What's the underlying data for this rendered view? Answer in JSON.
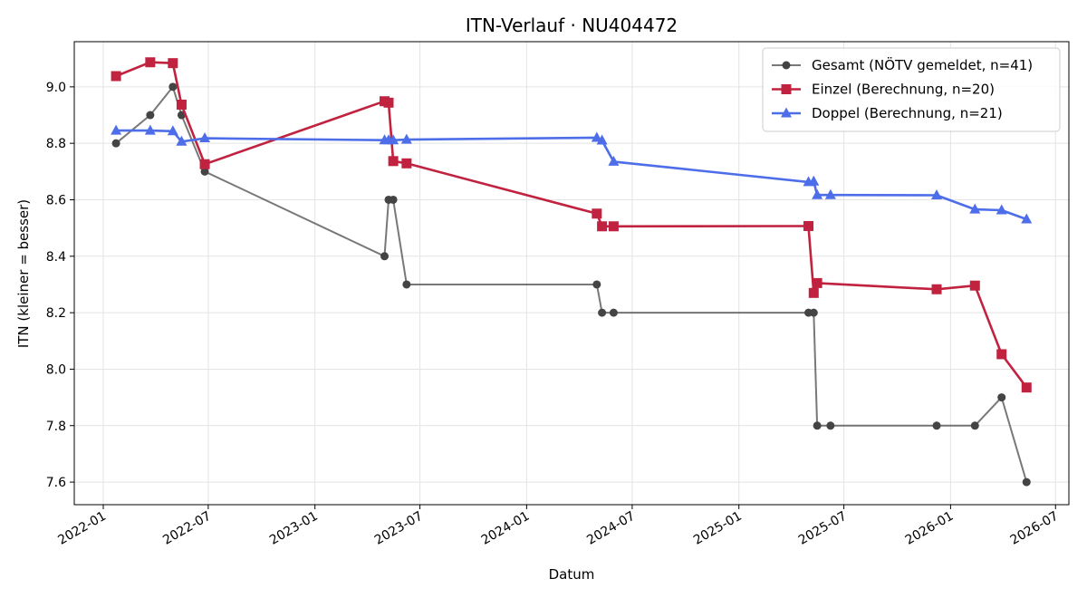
{
  "chart_data": {
    "type": "line",
    "title": "ITN-Verlauf · NU404472",
    "xlabel": "Datum",
    "ylabel": "ITN  (kleiner = besser)",
    "x_type": "date",
    "xlim": [
      "2021-11-12",
      "2026-07-24"
    ],
    "ylim": [
      7.52,
      9.16
    ],
    "x_ticks": [
      "2022-01-01",
      "2022-07-01",
      "2023-01-01",
      "2023-07-01",
      "2024-01-01",
      "2024-07-01",
      "2025-01-01",
      "2025-07-01",
      "2026-01-01",
      "2026-07-01"
    ],
    "x_tick_labels": [
      "2022-01",
      "2022-07",
      "2023-01",
      "2023-07",
      "2024-01",
      "2024-07",
      "2025-01",
      "2025-07",
      "2026-01",
      "2026-07"
    ],
    "y_ticks": [
      7.6,
      7.8,
      8.0,
      8.2,
      8.4,
      8.6,
      8.8,
      9.0
    ],
    "y_tick_labels": [
      "7.6",
      "7.8",
      "8.0",
      "8.2",
      "8.4",
      "8.6",
      "8.8",
      "9.0"
    ],
    "grid": true,
    "legend_position": "top-right",
    "series": [
      {
        "name": "Gesamt (NÖTV gemeldet, n=41)",
        "color": "#444444",
        "marker": "circle",
        "points": [
          [
            "2022-01-23",
            8.8
          ],
          [
            "2022-03-23",
            8.9
          ],
          [
            "2022-05-01",
            9.0
          ],
          [
            "2022-05-16",
            8.9
          ],
          [
            "2022-06-25",
            8.7
          ],
          [
            "2023-05-01",
            8.4
          ],
          [
            "2023-05-08",
            8.6
          ],
          [
            "2023-05-16",
            8.6
          ],
          [
            "2023-06-08",
            8.3
          ],
          [
            "2024-05-01",
            8.3
          ],
          [
            "2024-05-10",
            8.2
          ],
          [
            "2024-05-30",
            8.2
          ],
          [
            "2025-05-01",
            8.2
          ],
          [
            "2025-05-10",
            8.2
          ],
          [
            "2025-05-16",
            7.8
          ],
          [
            "2025-06-08",
            7.8
          ],
          [
            "2025-12-08",
            7.8
          ],
          [
            "2026-02-12",
            7.8
          ],
          [
            "2026-03-30",
            7.9
          ],
          [
            "2026-05-12",
            7.6
          ]
        ]
      },
      {
        "name": "Einzel (Berechnung, n=20)",
        "color": "#c0223f",
        "marker": "square",
        "points": [
          [
            "2022-01-23",
            9.038
          ],
          [
            "2022-03-23",
            9.087
          ],
          [
            "2022-05-01",
            9.084
          ],
          [
            "2022-05-16",
            8.937
          ],
          [
            "2022-06-25",
            8.726
          ],
          [
            "2023-05-01",
            8.949
          ],
          [
            "2023-05-08",
            8.944
          ],
          [
            "2023-05-16",
            8.737
          ],
          [
            "2023-06-08",
            8.729
          ],
          [
            "2024-05-01",
            8.551
          ],
          [
            "2024-05-10",
            8.506
          ],
          [
            "2024-05-30",
            8.506
          ],
          [
            "2025-05-01",
            8.507
          ],
          [
            "2025-05-10",
            8.27
          ],
          [
            "2025-05-16",
            8.305
          ],
          [
            "2025-12-08",
            8.283
          ],
          [
            "2026-02-12",
            8.296
          ],
          [
            "2026-03-30",
            8.053
          ],
          [
            "2026-05-12",
            7.935
          ]
        ]
      },
      {
        "name": "Doppel (Berechnung, n=21)",
        "color": "#4d6ee8",
        "marker": "triangle",
        "points": [
          [
            "2022-01-23",
            8.845
          ],
          [
            "2022-03-23",
            8.845
          ],
          [
            "2022-05-01",
            8.843
          ],
          [
            "2022-05-16",
            8.806
          ],
          [
            "2022-06-25",
            8.818
          ],
          [
            "2023-05-01",
            8.811
          ],
          [
            "2023-05-08",
            8.811
          ],
          [
            "2023-05-16",
            8.811
          ],
          [
            "2023-06-08",
            8.813
          ],
          [
            "2024-05-01",
            8.82
          ],
          [
            "2024-05-10",
            8.81
          ],
          [
            "2024-05-30",
            8.735
          ],
          [
            "2025-05-01",
            8.663
          ],
          [
            "2025-05-10",
            8.665
          ],
          [
            "2025-05-16",
            8.617
          ],
          [
            "2025-06-08",
            8.617
          ],
          [
            "2025-12-08",
            8.616
          ],
          [
            "2026-02-12",
            8.566
          ],
          [
            "2026-03-30",
            8.563
          ],
          [
            "2026-05-12",
            8.531
          ]
        ]
      }
    ]
  }
}
